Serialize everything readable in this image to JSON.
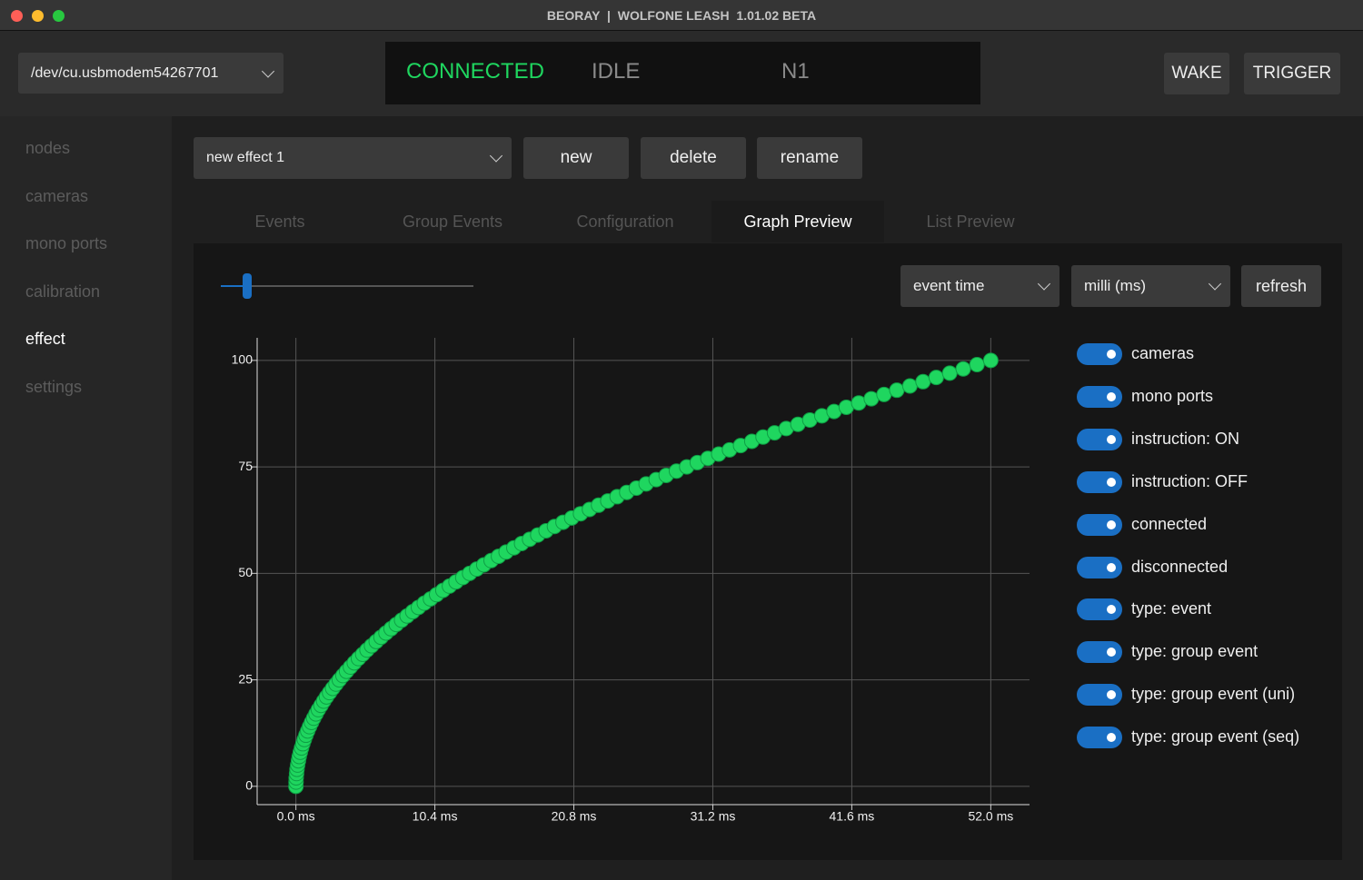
{
  "window": {
    "title": "BEORAY  |  WOLFONE LEASH  1.01.02 BETA"
  },
  "header": {
    "port": "/dev/cu.usbmodem54267701",
    "connection": "CONNECTED",
    "state": "IDLE",
    "node": "N1",
    "buttons": [
      "WAKE",
      "TRIGGER"
    ]
  },
  "sidebar": {
    "items": [
      "nodes",
      "cameras",
      "mono ports",
      "calibration",
      "effect",
      "settings"
    ],
    "selected": 4
  },
  "effect_bar": {
    "effect": "new effect 1",
    "buttons": [
      "new",
      "delete",
      "rename"
    ]
  },
  "tabs": {
    "items": [
      "Events",
      "Group Events",
      "Configuration",
      "Graph Preview",
      "List Preview"
    ],
    "selected": 3
  },
  "controls": {
    "x_mode": "event time",
    "unit": "milli (ms)",
    "button": "refresh"
  },
  "toggles": [
    "cameras",
    "mono ports",
    "instruction: ON",
    "instruction: OFF",
    "connected",
    "disconnected",
    "type: event",
    "type: group event",
    "type: group event (uni)",
    "type: group event (seq)"
  ],
  "chart_data": {
    "type": "scatter",
    "color": "#1fd65f",
    "grid": true,
    "x": [
      0,
      0.01,
      0.02,
      0.05,
      0.08,
      0.13,
      0.19,
      0.25,
      0.33,
      0.42,
      0.52,
      0.63,
      0.75,
      0.88,
      1.02,
      1.17,
      1.33,
      1.5,
      1.68,
      1.88,
      2.08,
      2.29,
      2.52,
      2.75,
      3.0,
      3.25,
      3.52,
      3.79,
      4.08,
      4.37,
      4.68,
      5.0,
      5.32,
      5.66,
      6.01,
      6.37,
      6.74,
      7.12,
      7.51,
      7.91,
      8.32,
      8.74,
      9.17,
      9.61,
      10.07,
      10.53,
      11.0,
      11.49,
      11.98,
      12.49,
      13.0,
      13.53,
      14.06,
      14.61,
      15.16,
      15.73,
      16.31,
      16.89,
      17.49,
      18.1,
      18.72,
      19.35,
      19.99,
      20.64,
      21.3,
      21.97,
      22.65,
      23.34,
      24.04,
      24.76,
      25.48,
      26.21,
      26.96,
      27.71,
      28.48,
      29.25,
      30.04,
      30.83,
      31.64,
      32.45,
      33.28,
      34.12,
      34.96,
      35.82,
      36.69,
      37.57,
      38.46,
      39.36,
      40.27,
      41.19,
      42.12,
      43.06,
      44.01,
      44.97,
      45.95,
      46.93,
      47.92,
      48.93,
      49.94,
      50.97,
      52.0
    ],
    "values": [
      0,
      1,
      2,
      3,
      4,
      5,
      6,
      7,
      8,
      9,
      10,
      11,
      12,
      13,
      14,
      15,
      16,
      17,
      18,
      19,
      20,
      21,
      22,
      23,
      24,
      25,
      26,
      27,
      28,
      29,
      30,
      31,
      32,
      33,
      34,
      35,
      36,
      37,
      38,
      39,
      40,
      41,
      42,
      43,
      44,
      45,
      46,
      47,
      48,
      49,
      50,
      51,
      52,
      53,
      54,
      55,
      56,
      57,
      58,
      59,
      60,
      61,
      62,
      63,
      64,
      65,
      66,
      67,
      68,
      69,
      70,
      71,
      72,
      73,
      74,
      75,
      76,
      77,
      78,
      79,
      80,
      81,
      82,
      83,
      84,
      85,
      86,
      87,
      88,
      89,
      90,
      91,
      92,
      93,
      94,
      95,
      96,
      97,
      98,
      99,
      100
    ],
    "xlim": [
      -2.9,
      54.9
    ],
    "ylim": [
      -4.3,
      105.3
    ],
    "xticks": [
      {
        "value": 0,
        "label": "0.0 ms"
      },
      {
        "value": 10.4,
        "label": "10.4 ms"
      },
      {
        "value": 20.8,
        "label": "20.8 ms"
      },
      {
        "value": 31.2,
        "label": "31.2 ms"
      },
      {
        "value": 41.6,
        "label": "41.6 ms"
      },
      {
        "value": 52,
        "label": "52.0 ms"
      }
    ],
    "yticks": [
      0,
      25,
      50,
      75,
      100
    ]
  }
}
